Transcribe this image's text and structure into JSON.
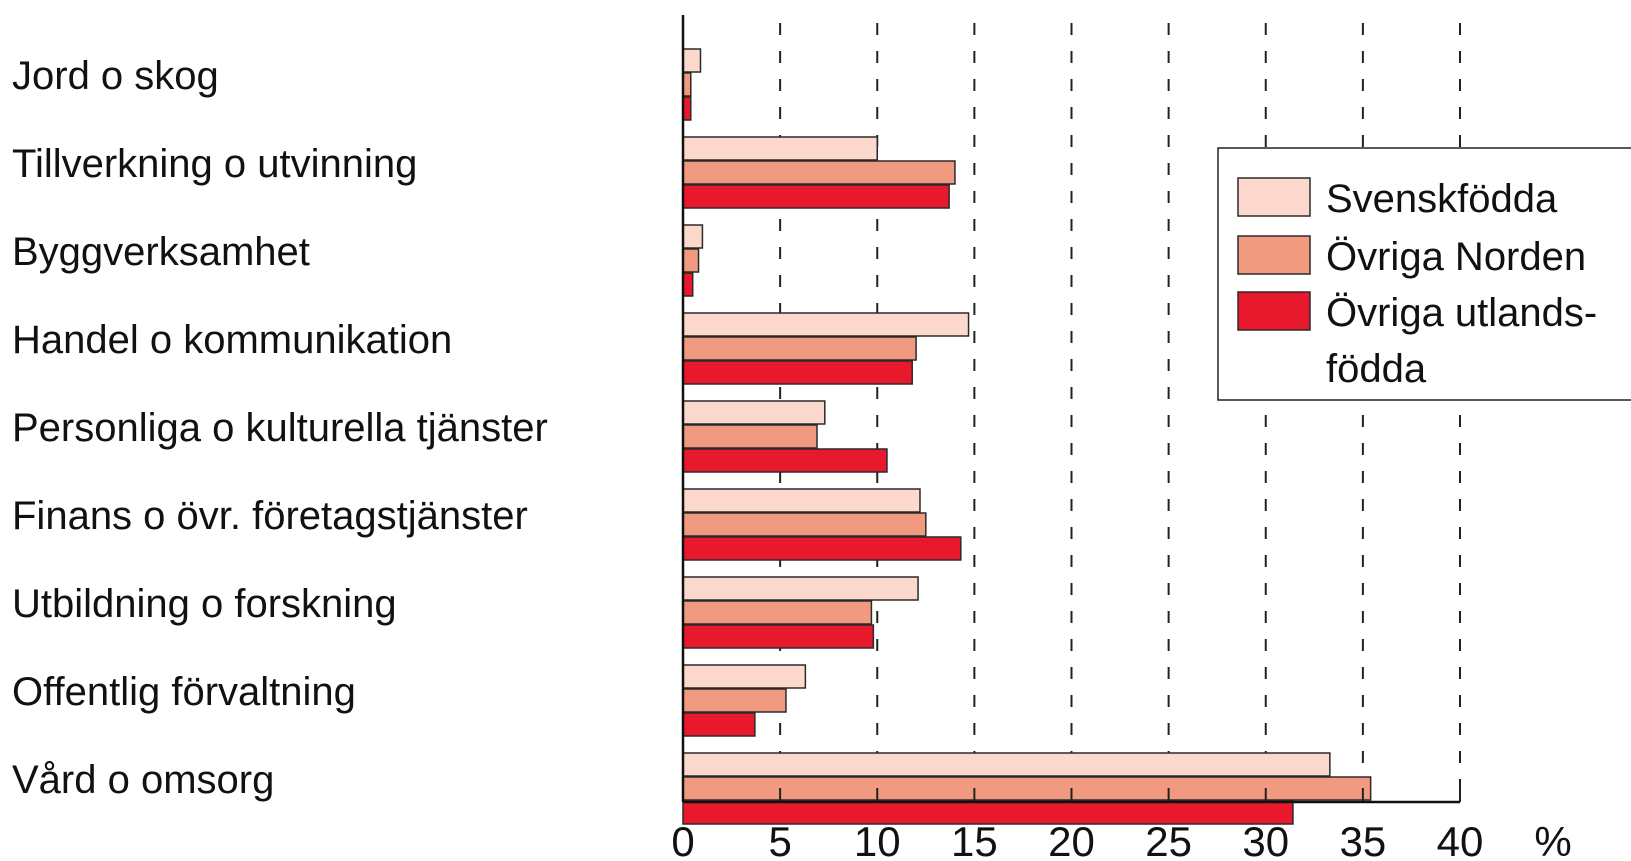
{
  "chart_data": {
    "type": "bar",
    "orientation": "horizontal",
    "title": "",
    "xlabel": "",
    "ylabel": "",
    "unit_label": "%",
    "xlim": [
      0,
      40
    ],
    "x_ticks": [
      "0",
      "5",
      "10",
      "15",
      "20",
      "25",
      "30",
      "35",
      "40"
    ],
    "grid": "vertical dashed",
    "legend_position": "top-right",
    "categories": [
      "Jord o skog",
      "Tillverkning o utvinning",
      "Byggverksamhet",
      "Handel o kommunikation",
      "Personliga o kulturella tjänster",
      "Finans o övr. företagstjänster",
      "Utbildning o forskning",
      "Offentlig förvaltning",
      "Vård o omsorg"
    ],
    "series": [
      {
        "name": "Svenskfödda",
        "color": "#fcd9cc",
        "values": [
          0.9,
          10.0,
          1.0,
          14.7,
          7.3,
          12.2,
          12.1,
          6.3,
          33.3
        ]
      },
      {
        "name": "Övriga Norden",
        "color": "#f29a80",
        "values": [
          0.4,
          14.0,
          0.8,
          12.0,
          6.9,
          12.5,
          9.7,
          5.3,
          35.4
        ]
      },
      {
        "name": "Övriga utlandsfödda",
        "color": "#e8192c",
        "values": [
          0.4,
          13.7,
          0.5,
          11.8,
          10.5,
          14.3,
          9.8,
          3.7,
          31.4
        ]
      }
    ],
    "legend_lines": [
      [
        "Svenskfödda"
      ],
      [
        "Övriga Norden"
      ],
      [
        "Övriga utlands-",
        "födda"
      ]
    ]
  }
}
